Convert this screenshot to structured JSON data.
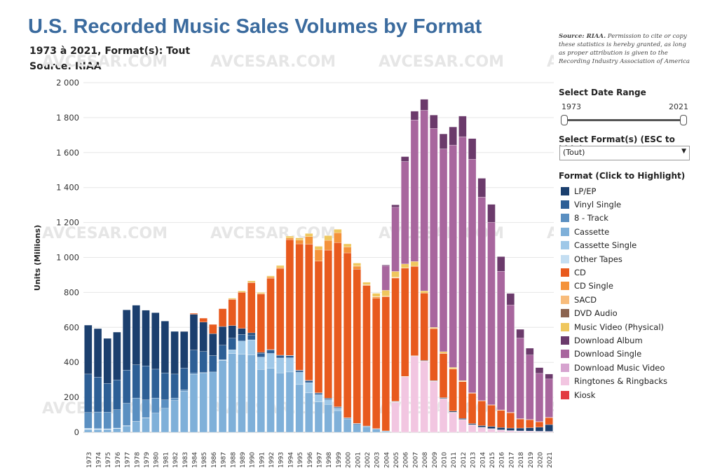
{
  "header": {
    "title": "U.S. Recorded Music Sales Volumes by Format",
    "subtitle": "1973 à 2021, Format(s): Tout",
    "source": "Source: RIAA",
    "note_bold": "Source: RIAA.",
    "note_text": " Permission to cite or copy these statistics is hereby granted, as long as proper attribution is given to the Recording Industry Association of America"
  },
  "watermark": "AVCESAR.COM",
  "controls": {
    "date_range_label": "Select Date Range",
    "range_start": "1973",
    "range_end": "2021",
    "format_select_label": "Select Format(s) (ESC to hide)",
    "format_select_value": "(Tout)",
    "legend_title": "Format (Click to Highlight)"
  },
  "chart_data": {
    "type": "bar",
    "stacked": true,
    "ylabel": "Units (Millions)",
    "ylim": [
      0,
      2000
    ],
    "yticks": [
      0,
      200,
      400,
      600,
      800,
      1000,
      1200,
      1400,
      1600,
      1800,
      2000
    ],
    "ytick_labels": [
      "0",
      "200",
      "400",
      "600",
      "800",
      "1 000",
      "1 200",
      "1 400",
      "1 600",
      "1 800",
      "2 000"
    ],
    "grid": true,
    "legend_position": "right",
    "categories": [
      "1973",
      "1974",
      "1975",
      "1976",
      "1977",
      "1978",
      "1979",
      "1980",
      "1981",
      "1982",
      "1983",
      "1984",
      "1985",
      "1986",
      "1987",
      "1988",
      "1989",
      "1990",
      "1991",
      "1992",
      "1993",
      "1994",
      "1995",
      "1996",
      "1997",
      "1998",
      "1999",
      "2000",
      "2001",
      "2002",
      "2003",
      "2004",
      "2005",
      "2006",
      "2007",
      "2008",
      "2009",
      "2010",
      "2011",
      "2012",
      "2013",
      "2014",
      "2015",
      "2016",
      "2017",
      "2018",
      "2019",
      "2020",
      "2021"
    ],
    "series": [
      {
        "name": "Ringtones & Ringbacks",
        "color": "#f2c6e1",
        "values": [
          0,
          0,
          0,
          0,
          0,
          0,
          0,
          0,
          0,
          0,
          0,
          0,
          0,
          0,
          0,
          0,
          0,
          0,
          0,
          0,
          0,
          0,
          0,
          0,
          0,
          0,
          0,
          0,
          0,
          0,
          0,
          0,
          170,
          315,
          434,
          405,
          290,
          190,
          112,
          70,
          40,
          25,
          18,
          12,
          8,
          6,
          5,
          4,
          3
        ]
      },
      {
        "name": "Kiosk",
        "color": "#e23c42",
        "values": [
          0,
          0,
          0,
          0,
          0,
          0,
          0,
          0,
          0,
          0,
          0,
          0,
          0,
          0,
          0,
          0,
          0,
          0,
          0,
          0,
          0,
          0,
          0,
          0,
          0,
          0,
          0,
          0,
          0,
          0,
          0,
          0,
          2,
          2,
          2,
          2,
          2,
          2,
          2,
          2,
          2,
          2,
          1,
          1,
          1,
          1,
          1,
          1,
          1
        ]
      },
      {
        "name": "Cassette",
        "color": "#7fb0d9",
        "values": [
          15,
          15,
          16,
          21,
          36,
          61,
          82,
          110,
          137,
          182,
          236,
          332,
          339,
          345,
          410,
          450,
          446,
          442,
          360,
          366,
          340,
          345,
          273,
          225,
          173,
          159,
          124,
          76,
          45,
          31,
          17,
          5,
          2,
          1,
          0,
          0,
          0,
          0,
          0,
          0,
          0,
          0,
          0,
          0,
          0,
          0,
          0,
          0,
          0
        ]
      },
      {
        "name": "Cassette Single",
        "color": "#9fc8e8",
        "values": [
          0,
          0,
          0,
          0,
          0,
          0,
          0,
          0,
          0,
          0,
          0,
          0,
          0,
          0,
          5,
          22,
          76,
          87,
          70,
          85,
          85,
          81,
          70,
          59,
          42,
          27,
          14,
          1,
          0,
          0,
          0,
          0,
          0,
          0,
          0,
          0,
          0,
          0,
          0,
          0,
          0,
          0,
          0,
          0,
          0,
          0,
          0,
          0,
          0
        ]
      },
      {
        "name": "Other Tapes",
        "color": "#c4def2",
        "values": [
          8,
          6,
          4,
          3,
          2,
          1,
          1,
          0,
          0,
          0,
          0,
          0,
          0,
          0,
          0,
          0,
          0,
          0,
          0,
          0,
          0,
          0,
          0,
          0,
          0,
          0,
          0,
          0,
          0,
          0,
          0,
          0,
          0,
          0,
          0,
          0,
          0,
          0,
          0,
          0,
          0,
          0,
          0,
          0,
          0,
          0,
          0,
          0,
          0
        ]
      },
      {
        "name": "8 - Track",
        "color": "#5a8fc1",
        "values": [
          90,
          95,
          95,
          105,
          128,
          134,
          102,
          86,
          48,
          14,
          6,
          6,
          3,
          0,
          0,
          0,
          0,
          0,
          0,
          0,
          0,
          0,
          0,
          0,
          0,
          0,
          0,
          0,
          0,
          0,
          0,
          0,
          0,
          0,
          0,
          0,
          0,
          0,
          0,
          0,
          0,
          0,
          0,
          0,
          0,
          0,
          0,
          0,
          0
        ]
      },
      {
        "name": "Vinyl Single",
        "color": "#2d5f96",
        "values": [
          220,
          200,
          165,
          170,
          190,
          190,
          195,
          165,
          155,
          137,
          125,
          132,
          120,
          94,
          83,
          66,
          37,
          28,
          22,
          20,
          15,
          12,
          10,
          10,
          8,
          6,
          5,
          4,
          4,
          3,
          3,
          2,
          2,
          1,
          1,
          1,
          1,
          2,
          2,
          2,
          2,
          2,
          2,
          1,
          1,
          1,
          1,
          1,
          1
        ]
      },
      {
        "name": "LP/EP",
        "color": "#1b3f6e",
        "values": [
          280,
          277,
          257,
          274,
          344,
          341,
          318,
          323,
          296,
          244,
          210,
          205,
          168,
          125,
          107,
          72,
          35,
          12,
          5,
          2,
          1,
          2,
          2,
          3,
          3,
          3,
          3,
          2,
          2,
          2,
          1,
          1,
          1,
          1,
          1,
          3,
          3,
          4,
          5,
          5,
          6,
          9,
          12,
          13,
          14,
          16,
          19,
          23,
          39
        ]
      },
      {
        "name": "CD",
        "color": "#e85a1e",
        "values": [
          0,
          0,
          0,
          0,
          0,
          0,
          0,
          0,
          0,
          0,
          1,
          6,
          23,
          53,
          102,
          150,
          207,
          287,
          333,
          408,
          495,
          662,
          723,
          779,
          753,
          847,
          939,
          943,
          882,
          803,
          746,
          767,
          705,
          619,
          511,
          385,
          297,
          253,
          241,
          211,
          173,
          141,
          122,
          99,
          88,
          52,
          46,
          31,
          40
        ]
      },
      {
        "name": "CD Single",
        "color": "#f4923a",
        "values": [
          0,
          0,
          0,
          0,
          0,
          0,
          0,
          0,
          0,
          0,
          0,
          0,
          0,
          0,
          0,
          1,
          0,
          1,
          4,
          7,
          7,
          9,
          21,
          44,
          66,
          56,
          56,
          34,
          17,
          4,
          8,
          3,
          3,
          1,
          1,
          0,
          1,
          1,
          1,
          1,
          1,
          0,
          0,
          0,
          0,
          0,
          0,
          0,
          0
        ]
      },
      {
        "name": "SACD",
        "color": "#f8bc7c",
        "values": [
          0,
          0,
          0,
          0,
          0,
          0,
          0,
          0,
          0,
          0,
          0,
          0,
          0,
          0,
          0,
          0,
          0,
          0,
          0,
          0,
          0,
          0,
          0,
          0,
          0,
          0,
          0,
          0,
          0,
          0,
          1,
          1,
          1,
          0,
          0,
          0,
          0,
          0,
          0,
          0,
          0,
          0,
          0,
          0,
          0,
          0,
          0,
          0,
          0
        ]
      },
      {
        "name": "DVD Audio",
        "color": "#8c6450",
        "values": [
          0,
          0,
          0,
          0,
          0,
          0,
          0,
          0,
          0,
          0,
          0,
          0,
          0,
          0,
          0,
          0,
          0,
          0,
          0,
          0,
          0,
          0,
          0,
          0,
          0,
          0,
          0,
          0,
          1,
          1,
          0,
          0,
          1,
          0,
          0,
          0,
          0,
          0,
          0,
          0,
          0,
          0,
          0,
          0,
          0,
          0,
          0,
          0,
          0
        ]
      },
      {
        "name": "Music Video (Physical)",
        "color": "#efc75e",
        "values": [
          0,
          0,
          0,
          0,
          0,
          0,
          0,
          0,
          0,
          0,
          0,
          0,
          0,
          0,
          0,
          6,
          7,
          9,
          6,
          7,
          11,
          11,
          13,
          17,
          19,
          27,
          20,
          18,
          17,
          14,
          19,
          33,
          33,
          23,
          27,
          13,
          6,
          9,
          8,
          5,
          2,
          2,
          2,
          2,
          2,
          2,
          1,
          1,
          1
        ]
      },
      {
        "name": "Download Single",
        "color": "#a8669e",
        "values": [
          0,
          0,
          0,
          0,
          0,
          0,
          0,
          0,
          0,
          0,
          0,
          0,
          0,
          0,
          0,
          0,
          0,
          0,
          0,
          0,
          0,
          0,
          0,
          0,
          0,
          0,
          0,
          0,
          0,
          0,
          0,
          140,
          367,
          586,
          810,
          1033,
          1138,
          1160,
          1272,
          1395,
          1336,
          1165,
          1044,
          793,
          614,
          461,
          369,
          276,
          220
        ]
      },
      {
        "name": "Download Album",
        "color": "#6b3a6b",
        "values": [
          0,
          0,
          0,
          0,
          0,
          0,
          0,
          0,
          0,
          0,
          0,
          0,
          0,
          0,
          0,
          0,
          0,
          0,
          0,
          0,
          0,
          0,
          0,
          0,
          0,
          0,
          0,
          0,
          0,
          0,
          0,
          5,
          14,
          28,
          50,
          63,
          77,
          86,
          104,
          118,
          118,
          107,
          103,
          84,
          66,
          50,
          39,
          33,
          28
        ]
      },
      {
        "name": "Download Music Video",
        "color": "#d6a3cf",
        "values": [
          0,
          0,
          0,
          0,
          0,
          0,
          0,
          0,
          0,
          0,
          0,
          0,
          0,
          0,
          0,
          0,
          0,
          0,
          0,
          0,
          0,
          0,
          0,
          0,
          0,
          0,
          0,
          0,
          0,
          0,
          0,
          0,
          0,
          0,
          0,
          0,
          0,
          0,
          0,
          0,
          0,
          0,
          0,
          0,
          0,
          0,
          0,
          0,
          0
        ]
      }
    ]
  },
  "legend_items": [
    {
      "label": "LP/EP",
      "color": "#1b3f6e"
    },
    {
      "label": "Vinyl Single",
      "color": "#2d5f96"
    },
    {
      "label": "8 - Track",
      "color": "#5a8fc1"
    },
    {
      "label": "Cassette",
      "color": "#7fb0d9"
    },
    {
      "label": "Cassette Single",
      "color": "#9fc8e8"
    },
    {
      "label": "Other Tapes",
      "color": "#c4def2"
    },
    {
      "label": "CD",
      "color": "#e85a1e"
    },
    {
      "label": "CD Single",
      "color": "#f4923a"
    },
    {
      "label": "SACD",
      "color": "#f8bc7c"
    },
    {
      "label": "DVD Audio",
      "color": "#8c6450"
    },
    {
      "label": "Music Video (Physical)",
      "color": "#efc75e"
    },
    {
      "label": "Download Album",
      "color": "#6b3a6b"
    },
    {
      "label": "Download Single",
      "color": "#a8669e"
    },
    {
      "label": "Download Music Video",
      "color": "#d6a3cf"
    },
    {
      "label": "Ringtones & Ringbacks",
      "color": "#f2c6e1"
    },
    {
      "label": "Kiosk",
      "color": "#e23c42"
    }
  ]
}
